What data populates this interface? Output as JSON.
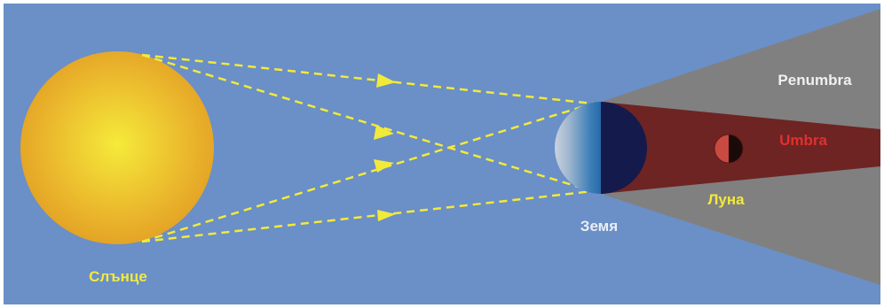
{
  "labels": {
    "sun": "Слънце",
    "earth": "Земя",
    "moon": "Луна",
    "penumbra": "Penumbra",
    "umbra": "Umbra"
  },
  "colors": {
    "sky": "#6b8fc7",
    "sun_center": "#f5e93a",
    "sun_edge": "#e3a524",
    "rays": "#f2ea3a",
    "penumbra": "#808080",
    "umbra": "#6e2423",
    "earth_day": "#bfcbd8",
    "earth_night": "#141a4c",
    "moon_lit": "#c84a40",
    "moon_dark": "#1a0a0a",
    "sun_label": "#f2ea3a",
    "earth_label": "#e8eef6",
    "moon_label": "#f2ea3a",
    "penumbra_label": "#f0f0f0",
    "umbra_label": "#e03030"
  }
}
